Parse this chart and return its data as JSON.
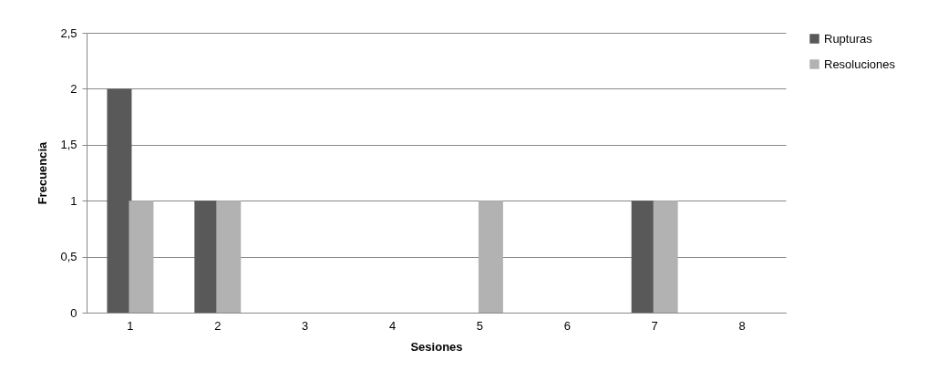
{
  "chart_data": {
    "type": "bar",
    "xlabel": "Sesiones",
    "ylabel": "Frecuencia",
    "categories": [
      "1",
      "2",
      "3",
      "4",
      "5",
      "6",
      "7",
      "8"
    ],
    "series": [
      {
        "name": "Rupturas",
        "color": "#595959",
        "values": [
          2,
          1,
          0,
          0,
          0,
          0,
          1,
          0
        ]
      },
      {
        "name": "Resoluciones",
        "color": "#b2b2b2",
        "values": [
          1,
          1,
          0,
          0,
          1,
          0,
          1,
          0
        ]
      }
    ],
    "ylim": [
      0,
      2.5
    ],
    "yticks": [
      0,
      {
        "value": 0.5,
        "label": "0,5"
      },
      1,
      {
        "value": 1.5,
        "label": "1,5"
      },
      2,
      {
        "value": 2.5,
        "label": "2,5"
      }
    ],
    "grid": "y",
    "legend": "right"
  }
}
